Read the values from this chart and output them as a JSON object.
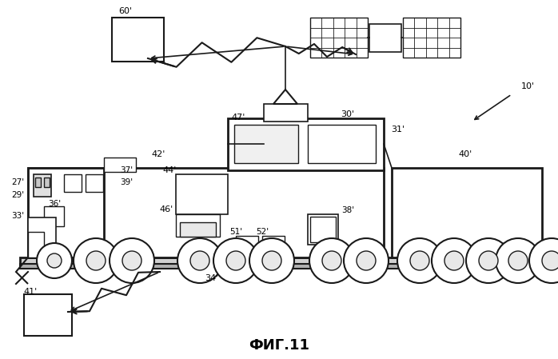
{
  "title": "ФИГ.11",
  "bg_color": "#ffffff",
  "line_color": "#1a1a1a",
  "title_fontsize": 13
}
